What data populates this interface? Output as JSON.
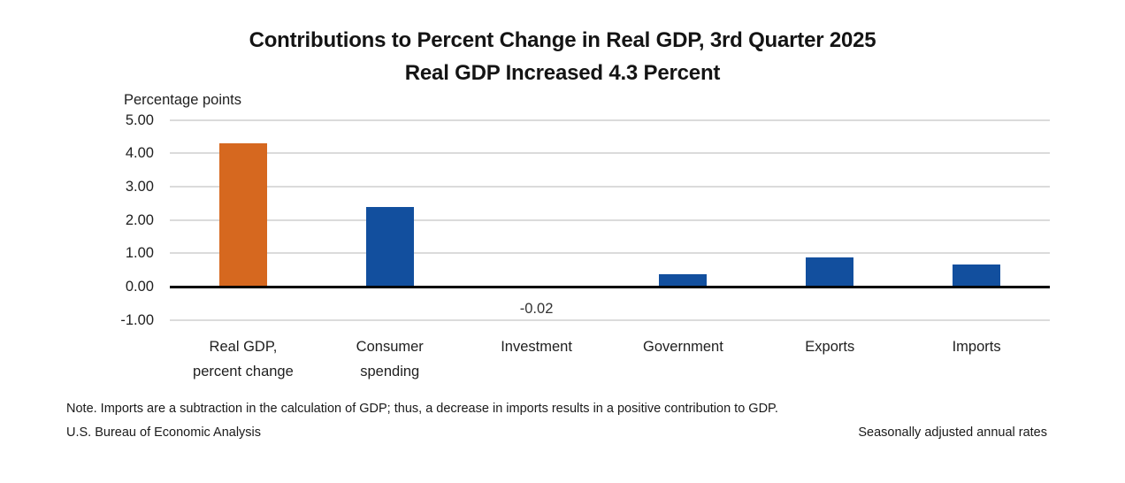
{
  "title": {
    "line1": "Contributions to Percent Change in Real GDP, 3rd Quarter 2025",
    "line2": "Real GDP Increased 4.3 Percent"
  },
  "chart_data": {
    "type": "bar",
    "title": "Contributions to Percent Change in Real GDP, 3rd Quarter 2025",
    "subtitle": "Real GDP Increased 4.3 Percent",
    "ylabel": "Percentage points",
    "xlabel": "",
    "categories": [
      "Real GDP, percent change",
      "Consumer spending",
      "Investment",
      "Government",
      "Exports",
      "Imports"
    ],
    "tick_labels": [
      "Real GDP,\npercent change",
      "Consumer\nspending",
      "Investment",
      "Government",
      "Exports",
      "Imports"
    ],
    "values": [
      4.3,
      2.39,
      -0.02,
      0.38,
      0.88,
      0.66
    ],
    "bar_colors": [
      "#d6681f",
      "#124f9e",
      "#124f9e",
      "#124f9e",
      "#124f9e",
      "#124f9e"
    ],
    "data_labels": [
      {
        "index": 2,
        "text": "-0.02"
      }
    ],
    "yticks": [
      5,
      4,
      3,
      2,
      1,
      0,
      -1
    ],
    "ytick_labels": [
      "5.00",
      "4.00",
      "3.00",
      "2.00",
      "1.00",
      "0.00",
      "-1.00"
    ],
    "ylim": [
      -1,
      5
    ],
    "gridlines": true,
    "legend": "none"
  },
  "colors": {
    "accent_orange": "#d6681f",
    "accent_blue": "#124f9e",
    "gridline": "#dbdbdb",
    "zero_line": "#000000"
  },
  "footer": {
    "note": "Note. Imports are a subtraction in the calculation of GDP; thus, a decrease in imports results in a positive contribution to GDP.",
    "source": "U.S. Bureau of Economic Analysis",
    "adjustment": "Seasonally adjusted annual rates"
  }
}
